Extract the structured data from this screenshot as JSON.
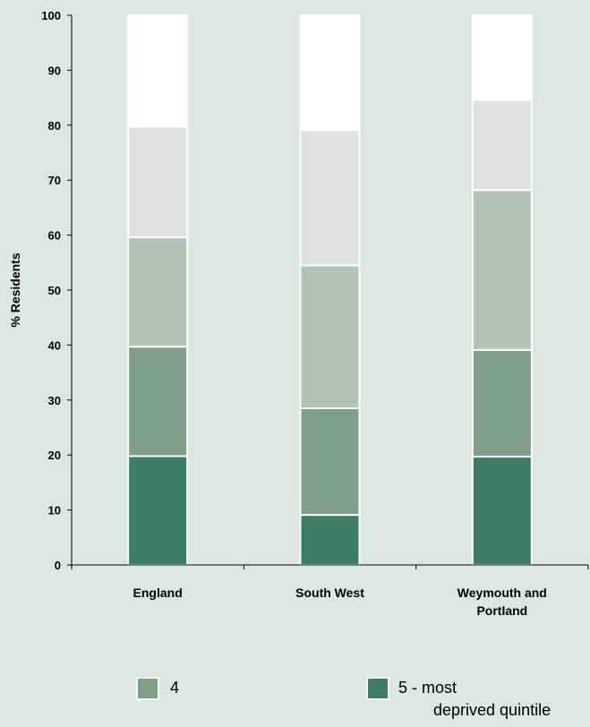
{
  "chart_data": {
    "type": "bar",
    "stacked": true,
    "categories": [
      [
        "England"
      ],
      [
        "South West"
      ],
      [
        "Weymouth and",
        "Portland"
      ]
    ],
    "ylabel": "% Residents",
    "ylim": [
      0,
      100
    ],
    "yticks": [
      0,
      10,
      20,
      30,
      40,
      50,
      60,
      70,
      80,
      90,
      100
    ],
    "series": [
      {
        "values": [
          19.8,
          9.1,
          19.7
        ],
        "color": "#3c7d64"
      },
      {
        "name": "4",
        "values": [
          19.9,
          19.4,
          19.4
        ],
        "color": "#7f9f89"
      },
      {
        "values": [
          19.9,
          26.0,
          29.1
        ],
        "color": "#b2c3b5"
      },
      {
        "values": [
          20.1,
          24.6,
          16.4
        ],
        "color": "#dde3dc"
      },
      {
        "values": [
          20.3,
          20.9,
          15.4
        ],
        "color": "#ffffff"
      }
    ]
  },
  "legend": [
    {
      "series_index": 1,
      "label_lines": [
        "4"
      ],
      "color": "#7f9f89"
    },
    {
      "series_index": 0,
      "label_lines": [
        "5 - most",
        "deprived quintile"
      ],
      "color": "#3c7d64"
    }
  ]
}
